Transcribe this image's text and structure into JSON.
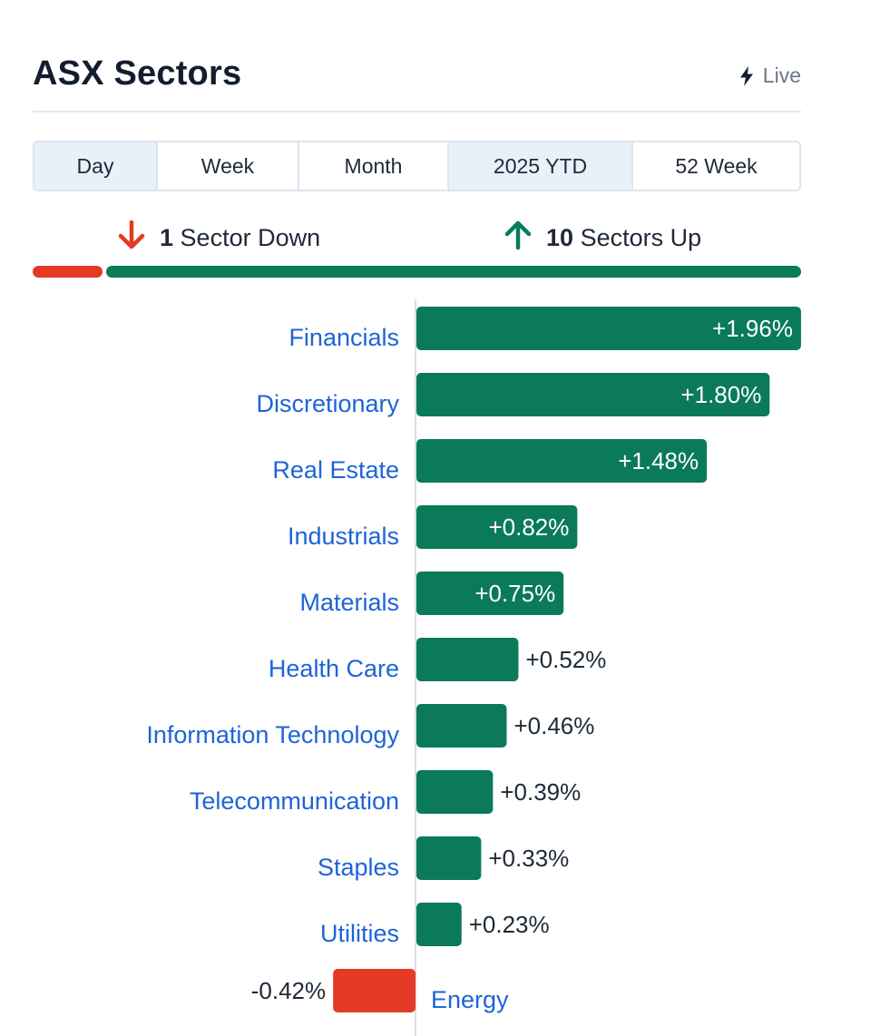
{
  "header": {
    "title": "ASX Sectors",
    "live_label": "Live",
    "live_icon": "lightning-bolt-icon"
  },
  "tabs": [
    {
      "label": "Day",
      "active": true
    },
    {
      "label": "Week",
      "active": false
    },
    {
      "label": "Month",
      "active": false
    },
    {
      "label": "2025 YTD",
      "active": true
    },
    {
      "label": "52 Week",
      "active": false
    }
  ],
  "summary": {
    "down_count": "1",
    "down_text": "Sector Down",
    "up_count": "10",
    "up_text": "Sectors Up",
    "down_icon": "arrow-down-icon",
    "up_icon": "arrow-up-icon"
  },
  "colors": {
    "up": "#0a7a5a",
    "down": "#e43a25",
    "label": "#1d64d8",
    "text": "#1f2937"
  },
  "chart_data": {
    "type": "bar",
    "orientation": "horizontal",
    "categories": [
      "Financials",
      "Discretionary",
      "Real Estate",
      "Industrials",
      "Materials",
      "Health Care",
      "Information Technology",
      "Telecommunication",
      "Staples",
      "Utilities",
      "Energy"
    ],
    "values": [
      1.96,
      1.8,
      1.48,
      0.82,
      0.75,
      0.52,
      0.46,
      0.39,
      0.33,
      0.23,
      -0.42
    ],
    "value_labels": [
      "+1.96%",
      "+1.80%",
      "+1.48%",
      "+0.82%",
      "+0.75%",
      "+0.52%",
      "+0.46%",
      "+0.39%",
      "+0.33%",
      "+0.23%",
      "-0.42%"
    ]
  }
}
